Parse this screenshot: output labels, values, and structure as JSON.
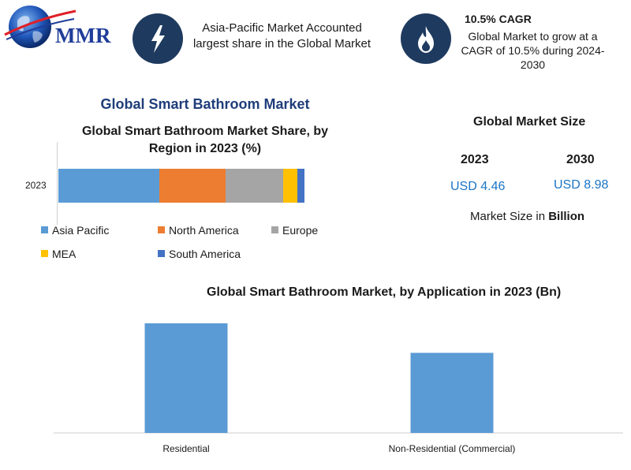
{
  "logo": {
    "text": "MMR",
    "icon": "globe-icon"
  },
  "info": [
    {
      "icon": "lightning-icon",
      "text": "Asia-Pacific Market Accounted largest share in the Global Market"
    },
    {
      "icon": "flame-icon",
      "title": "10.5% CAGR",
      "text": "Global Market to grow at a CAGR of 10.5% during 2024-2030"
    }
  ],
  "main_title": "Global Smart Bathroom Market",
  "market_size": {
    "title": "Global Market Size",
    "year_a": "2023",
    "year_b": "2030",
    "value_a": "USD 4.46",
    "value_b": "USD 8.98",
    "note_prefix": "Market Size in ",
    "note_unit": "Billion"
  },
  "chart_data": [
    {
      "type": "bar",
      "orientation": "horizontal-stacked",
      "title": "Global Smart Bathroom Market Share, by Region in 2023 (%)",
      "categories": [
        "2023"
      ],
      "series": [
        {
          "name": "Asia Pacific",
          "values": [
            41
          ],
          "color": "#5b9bd5"
        },
        {
          "name": "North America",
          "values": [
            27
          ],
          "color": "#ed7d31"
        },
        {
          "name": "Europe",
          "values": [
            23.5
          ],
          "color": "#a5a5a5"
        },
        {
          "name": "MEA",
          "values": [
            5.5
          ],
          "color": "#ffc000"
        },
        {
          "name": "South America",
          "values": [
            3
          ],
          "color": "#4472c4"
        }
      ],
      "xlim": [
        0,
        100
      ],
      "legend": "bottom",
      "grid": false
    },
    {
      "type": "bar",
      "title": "Global Smart Bathroom Market, by Application in 2023 (Bn)",
      "categories": [
        "Residential",
        "Non-Residential (Commercial)"
      ],
      "values": [
        2.6,
        1.9
      ],
      "color": "#5b9bd5",
      "ylim": [
        0,
        2.6
      ],
      "grid": false
    }
  ]
}
